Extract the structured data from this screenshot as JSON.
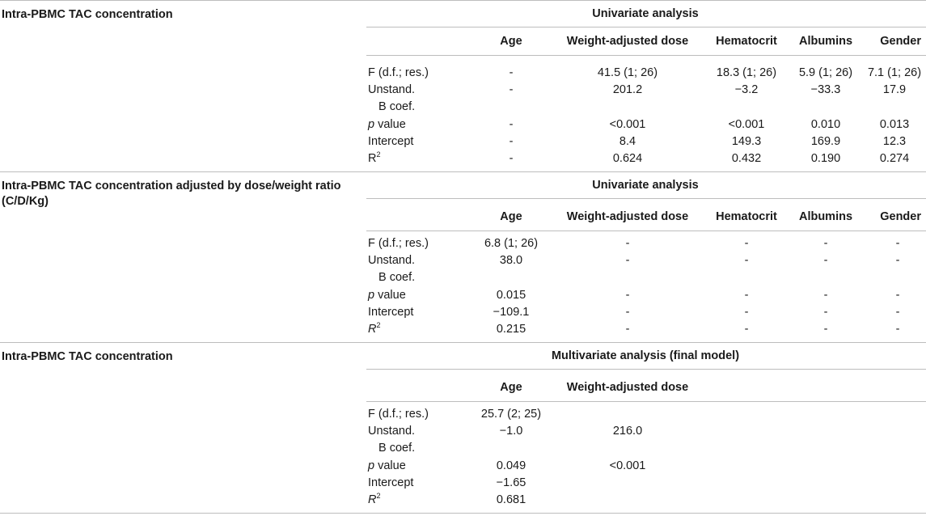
{
  "sections": [
    {
      "title": "Intra-PBMC TAC concentration",
      "analysis": "Univariate analysis",
      "columns": [
        "Age",
        "Weight-adjusted dose",
        "Hematocrit",
        "Albumins",
        "Gender"
      ],
      "rows": [
        {
          "label": "F (d.f.; res.)",
          "values": [
            "-",
            "41.5 (1; 26)",
            "18.3 (1; 26)",
            "5.9 (1; 26)",
            "7.1 (1; 26)"
          ]
        },
        {
          "label": "Unstand.",
          "label2": "B coef.",
          "values": [
            "-",
            "201.2",
            "−3.2",
            "−33.3",
            "17.9"
          ]
        },
        {
          "label": "p value",
          "values": [
            "-",
            "<0.001",
            "<0.001",
            "0.010",
            "0.013"
          ]
        },
        {
          "label": "Intercept",
          "values": [
            "-",
            "8.4",
            "149.3",
            "169.9",
            "12.3"
          ]
        },
        {
          "label": "R2",
          "values": [
            "-",
            "0.624",
            "0.432",
            "0.190",
            "0.274"
          ]
        }
      ]
    },
    {
      "title": "Intra-PBMC TAC concentration adjusted by dose/weight ratio (C/D/Kg)",
      "analysis": "Univariate analysis",
      "columns": [
        "Age",
        "Weight-adjusted dose",
        "Hematocrit",
        "Albumins",
        "Gender"
      ],
      "rows": [
        {
          "label": "F (d.f.; res.)",
          "values": [
            "6.8 (1; 26)",
            "-",
            "-",
            "-",
            "-"
          ]
        },
        {
          "label": "Unstand.",
          "label2": "B coef.",
          "values": [
            "38.0",
            "-",
            "-",
            "-",
            "-"
          ]
        },
        {
          "label": "p value",
          "values": [
            "0.015",
            "-",
            "-",
            "-",
            "-"
          ]
        },
        {
          "label": "Intercept",
          "values": [
            "−109.1",
            "-",
            "-",
            "-",
            "-"
          ]
        },
        {
          "label": "R2",
          "values": [
            "0.215",
            "-",
            "-",
            "-",
            "-"
          ]
        }
      ]
    },
    {
      "title": "Intra-PBMC TAC concentration",
      "analysis": "Multivariate analysis (final model)",
      "columns": [
        "Age",
        "Weight-adjusted dose"
      ],
      "rows": [
        {
          "label": "F (d.f.; res.)",
          "values": [
            "25.7 (2; 25)",
            ""
          ]
        },
        {
          "label": "Unstand.",
          "label2": "B coef.",
          "values": [
            "−1.0",
            "216.0"
          ]
        },
        {
          "label": "p value",
          "values": [
            "0.049",
            "<0.001"
          ]
        },
        {
          "label": "Intercept",
          "values": [
            "−1.65",
            ""
          ]
        },
        {
          "label": "R2",
          "values": [
            "0.681",
            ""
          ]
        }
      ]
    }
  ]
}
